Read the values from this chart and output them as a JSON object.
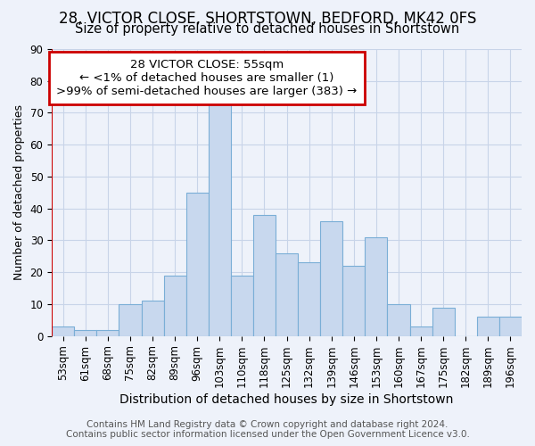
{
  "title_line1": "28, VICTOR CLOSE, SHORTSTOWN, BEDFORD, MK42 0FS",
  "title_line2": "Size of property relative to detached houses in Shortstown",
  "xlabel": "Distribution of detached houses by size in Shortstown",
  "ylabel": "Number of detached properties",
  "categories": [
    "53sqm",
    "61sqm",
    "68sqm",
    "75sqm",
    "82sqm",
    "89sqm",
    "96sqm",
    "103sqm",
    "110sqm",
    "118sqm",
    "125sqm",
    "132sqm",
    "139sqm",
    "146sqm",
    "153sqm",
    "160sqm",
    "167sqm",
    "175sqm",
    "182sqm",
    "189sqm",
    "196sqm"
  ],
  "values": [
    3,
    2,
    2,
    10,
    11,
    19,
    45,
    73,
    19,
    38,
    26,
    23,
    36,
    22,
    31,
    10,
    3,
    9,
    0,
    6,
    6
  ],
  "bar_color": "#c8d8ee",
  "bar_edge_color": "#7aaed6",
  "annotation_line1": "28 VICTOR CLOSE: 55sqm",
  "annotation_line2": "← <1% of detached houses are smaller (1)",
  "annotation_line3": ">99% of semi-detached houses are larger (383) →",
  "annotation_box_facecolor": "#ffffff",
  "annotation_box_edgecolor": "#cc0000",
  "vline_color": "#cc0000",
  "ylim": [
    0,
    90
  ],
  "yticks": [
    0,
    10,
    20,
    30,
    40,
    50,
    60,
    70,
    80,
    90
  ],
  "grid_color": "#c8d4e8",
  "background_color": "#eef2fa",
  "plot_bg_color": "#eef2fa",
  "footer_line1": "Contains HM Land Registry data © Crown copyright and database right 2024.",
  "footer_line2": "Contains public sector information licensed under the Open Government Licence v3.0.",
  "title_fontsize": 12,
  "subtitle_fontsize": 10.5,
  "xlabel_fontsize": 10,
  "ylabel_fontsize": 9,
  "tick_fontsize": 8.5,
  "footer_fontsize": 7.5,
  "annotation_fontsize": 9.5
}
